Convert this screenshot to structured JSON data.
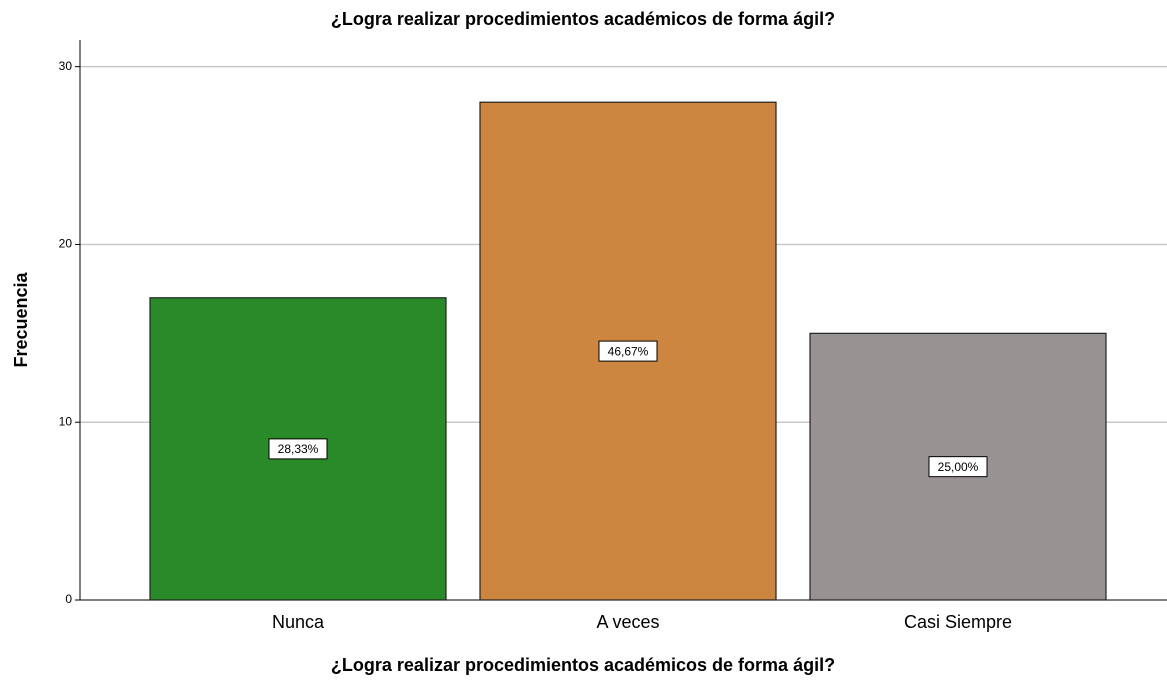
{
  "chart_data": {
    "type": "bar",
    "title": "¿Logra realizar procedimientos académicos de forma ágil?",
    "x_label": "¿Logra realizar procedimientos académicos de forma ágil?",
    "y_label": "Frecuencia",
    "categories": [
      "Nunca",
      "A veces",
      "Casi Siempre"
    ],
    "values": [
      17,
      28,
      15
    ],
    "percent_labels": [
      "28,33%",
      "46,67%",
      "25,00%"
    ],
    "colors": [
      "#2a8a2a",
      "#cd863f",
      "#969392"
    ],
    "ylim": [
      0,
      31.5
    ],
    "yticks": [
      0,
      10,
      20,
      30
    ],
    "grid": true
  }
}
